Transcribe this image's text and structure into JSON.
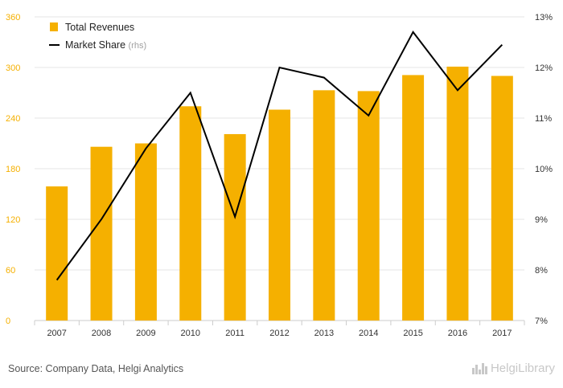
{
  "chart_data": {
    "type": "bar+line",
    "categories": [
      "2007",
      "2008",
      "2009",
      "2010",
      "2011",
      "2012",
      "2013",
      "2014",
      "2015",
      "2016",
      "2017"
    ],
    "series": [
      {
        "name": "Total Revenues",
        "type": "bar",
        "axis": "left",
        "color": "#f5b000",
        "values": [
          159,
          206,
          210,
          254,
          221,
          250,
          273,
          272,
          291,
          301,
          290
        ]
      },
      {
        "name": "Market Share",
        "name_suffix": "(rhs)",
        "type": "line",
        "axis": "right",
        "color": "#000000",
        "values": [
          7.8,
          9.0,
          10.4,
          11.5,
          9.05,
          12.0,
          11.8,
          11.05,
          12.7,
          11.55,
          12.45
        ]
      }
    ],
    "y_left": {
      "ticks": [
        0,
        60,
        120,
        180,
        240,
        300,
        360
      ],
      "lim": [
        0,
        360
      ],
      "color": "#f5b000"
    },
    "y_right": {
      "ticks": [
        7,
        8,
        9,
        10,
        11,
        12,
        13
      ],
      "tick_labels": [
        "7%",
        "8%",
        "9%",
        "10%",
        "11%",
        "12%",
        "13%"
      ],
      "lim": [
        7,
        13
      ]
    },
    "grid": "horizontal",
    "legend": "top-left"
  },
  "footer": {
    "source": "Source: Company Data, Helgi Analytics",
    "brand": "HelgiLibrary"
  }
}
